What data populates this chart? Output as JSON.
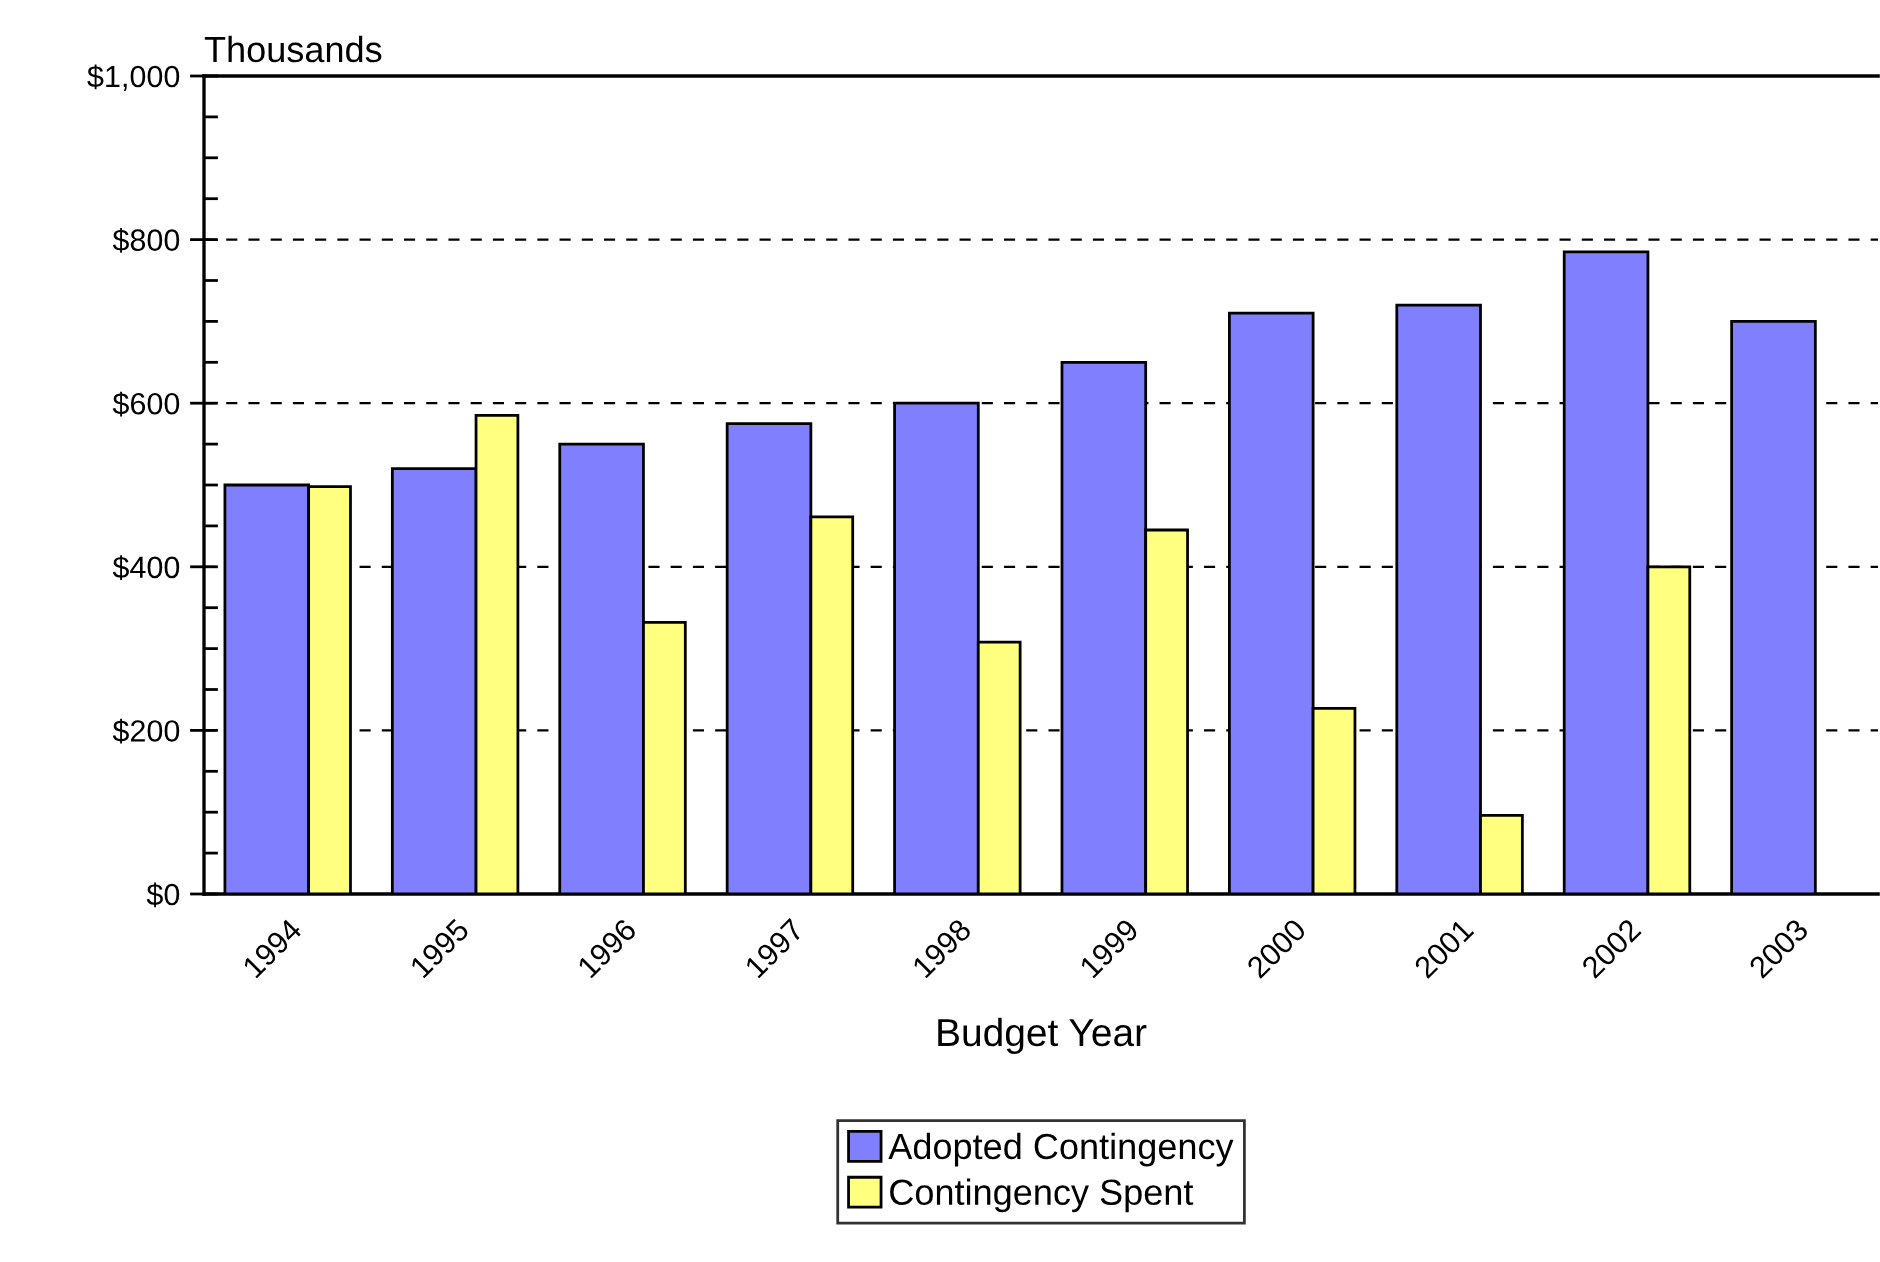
{
  "chart_data": {
    "type": "bar",
    "ylabel": "Thousands",
    "xlabel": "Budget Year",
    "categories": [
      "1994",
      "1995",
      "1996",
      "1997",
      "1998",
      "1999",
      "2000",
      "2001",
      "2002",
      "2003"
    ],
    "series": [
      {
        "name": "Adopted Contingency",
        "color": "#8080ff",
        "values": [
          500,
          520,
          550,
          575,
          600,
          650,
          710,
          720,
          785,
          700
        ]
      },
      {
        "name": "Contingency Spent",
        "color": "#ffff80",
        "values": [
          498,
          585,
          332,
          461,
          308,
          445,
          227,
          96,
          400,
          null
        ]
      }
    ],
    "ylim": [
      0,
      1000
    ],
    "yticks": [
      {
        "value": 0,
        "label": "$0"
      },
      {
        "value": 200,
        "label": "$200"
      },
      {
        "value": 400,
        "label": "$400"
      },
      {
        "value": 600,
        "label": "$600"
      },
      {
        "value": 800,
        "label": "$800"
      },
      {
        "value": 1000,
        "label": "$1,000"
      }
    ],
    "grid": "y",
    "legend": "bottom"
  }
}
